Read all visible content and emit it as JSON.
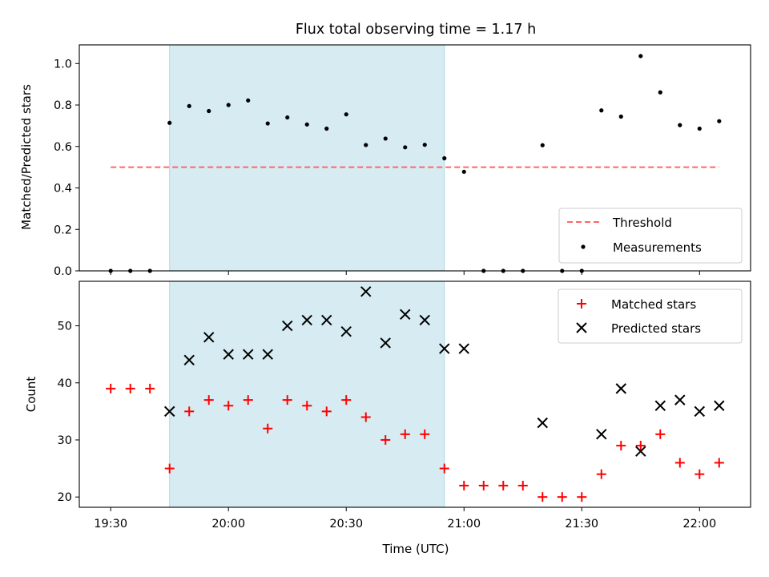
{
  "chart_data": [
    {
      "type": "scatter",
      "panel": "top",
      "title": "Flux total observing time = 1.17 h",
      "ylabel": "Matched/Predicted stars",
      "xlabel": "",
      "xlim": [
        "19:22",
        "22:13"
      ],
      "ylim": [
        0,
        1.09
      ],
      "yticks": [
        0.0,
        0.2,
        0.4,
        0.6,
        0.8,
        1.0
      ],
      "ytick_labels": [
        "0.0",
        "0.2",
        "0.4",
        "0.6",
        "0.8",
        "1.0"
      ],
      "grid": false,
      "legend_placement": "bottom-right",
      "shaded_interval": {
        "start": "19:45",
        "end": "20:55",
        "color": "#add8e6"
      },
      "threshold": {
        "name": "Threshold",
        "value": 0.5,
        "x_start": "19:30",
        "x_end": "22:05",
        "color": "#ff6666"
      },
      "series": [
        {
          "name": "Measurements",
          "color": "#000000",
          "marker": "dot",
          "x": [
            "19:30",
            "19:35",
            "19:40",
            "19:45",
            "19:50",
            "19:55",
            "20:00",
            "20:05",
            "20:10",
            "20:15",
            "20:20",
            "20:25",
            "20:30",
            "20:35",
            "20:40",
            "20:45",
            "20:50",
            "20:55",
            "21:00",
            "21:05",
            "21:10",
            "21:15",
            "21:20",
            "21:25",
            "21:30",
            "21:35",
            "21:40",
            "21:45",
            "21:50",
            "21:55",
            "22:00",
            "22:05"
          ],
          "y": [
            0.0,
            0.0,
            0.0,
            0.714,
            0.795,
            0.771,
            0.8,
            0.822,
            0.711,
            0.74,
            0.706,
            0.686,
            0.755,
            0.607,
            0.638,
            0.596,
            0.608,
            0.543,
            0.478,
            0.0,
            0.0,
            0.0,
            0.606,
            0.0,
            0.0,
            0.774,
            0.744,
            1.036,
            0.861,
            0.703,
            0.686,
            0.722
          ]
        }
      ]
    },
    {
      "type": "scatter",
      "panel": "bottom",
      "title": "",
      "ylabel": "Count",
      "xlabel": "Time (UTC)",
      "xlim": [
        "19:22",
        "22:13"
      ],
      "xticks": [
        "19:30",
        "20:00",
        "20:30",
        "21:00",
        "21:30",
        "22:00"
      ],
      "ylim": [
        18.2,
        57.8
      ],
      "yticks": [
        20,
        30,
        40,
        50
      ],
      "grid": false,
      "legend_placement": "top-right",
      "shaded_interval": {
        "start": "19:45",
        "end": "20:55",
        "color": "#add8e6"
      },
      "series": [
        {
          "name": "Matched stars",
          "color": "#ff0000",
          "marker": "plus",
          "x": [
            "19:30",
            "19:35",
            "19:40",
            "19:45",
            "19:50",
            "19:55",
            "20:00",
            "20:05",
            "20:10",
            "20:15",
            "20:20",
            "20:25",
            "20:30",
            "20:35",
            "20:40",
            "20:45",
            "20:50",
            "20:55",
            "21:00",
            "21:05",
            "21:10",
            "21:15",
            "21:20",
            "21:25",
            "21:30",
            "21:35",
            "21:40",
            "21:45",
            "21:50",
            "21:55",
            "22:00",
            "22:05"
          ],
          "y": [
            39,
            39,
            39,
            25,
            35,
            37,
            36,
            37,
            32,
            37,
            36,
            35,
            37,
            34,
            30,
            31,
            31,
            25,
            22,
            22,
            22,
            22,
            20,
            20,
            20,
            24,
            29,
            29,
            31,
            26,
            24,
            26
          ]
        },
        {
          "name": "Predicted stars",
          "color": "#000000",
          "marker": "x",
          "x": [
            "19:45",
            "19:50",
            "19:55",
            "20:00",
            "20:05",
            "20:10",
            "20:15",
            "20:20",
            "20:25",
            "20:30",
            "20:35",
            "20:40",
            "20:45",
            "20:50",
            "20:55",
            "21:00",
            "21:20",
            "21:35",
            "21:40",
            "21:45",
            "21:50",
            "21:55",
            "22:00",
            "22:05"
          ],
          "y": [
            35,
            44,
            48,
            45,
            45,
            45,
            50,
            51,
            51,
            49,
            56,
            47,
            52,
            51,
            46,
            46,
            33,
            31,
            39,
            28,
            36,
            37,
            35,
            36
          ]
        }
      ]
    }
  ]
}
